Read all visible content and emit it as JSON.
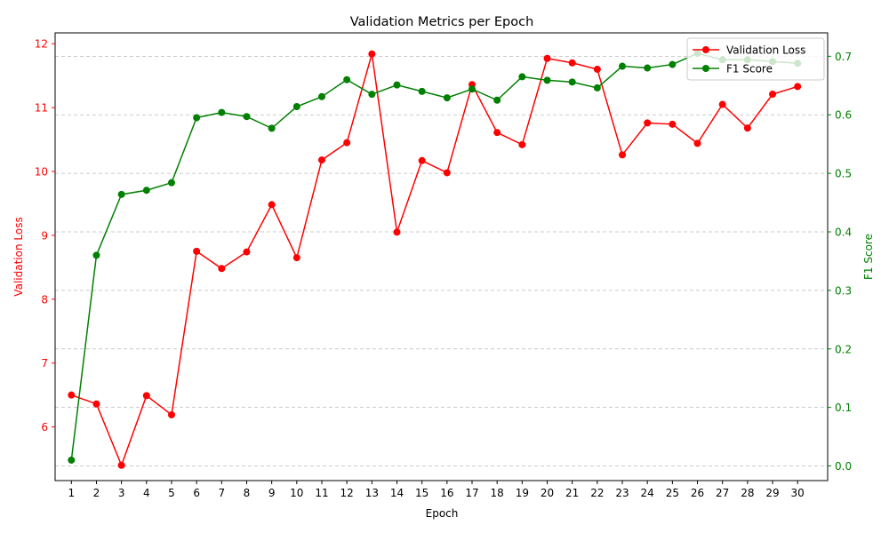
{
  "chart_data": {
    "type": "line",
    "title": "Validation Metrics per Epoch",
    "xlabel": "Epoch",
    "x": [
      1,
      2,
      3,
      4,
      5,
      6,
      7,
      8,
      9,
      10,
      11,
      12,
      13,
      14,
      15,
      16,
      17,
      18,
      19,
      20,
      21,
      22,
      23,
      24,
      25,
      26,
      27,
      28,
      29,
      30
    ],
    "xlim": [
      0.35,
      31.2
    ],
    "grid": true,
    "legend_position": "top-right",
    "series": [
      {
        "name": "Validation Loss",
        "axis": "left",
        "color": "#ff0000",
        "values": [
          6.5,
          6.36,
          5.4,
          6.49,
          6.19,
          8.75,
          8.48,
          8.74,
          9.48,
          8.65,
          10.18,
          10.45,
          11.84,
          9.05,
          10.17,
          9.98,
          11.36,
          10.61,
          10.42,
          11.77,
          11.7,
          11.6,
          10.26,
          10.76,
          10.74,
          10.44,
          11.05,
          10.68,
          11.21,
          11.33
        ]
      },
      {
        "name": "F1 Score",
        "axis": "right",
        "color": "#008000",
        "values": [
          0.01,
          0.36,
          0.464,
          0.471,
          0.484,
          0.595,
          0.604,
          0.597,
          0.577,
          0.614,
          0.631,
          0.66,
          0.635,
          0.651,
          0.64,
          0.629,
          0.644,
          0.625,
          0.665,
          0.659,
          0.656,
          0.646,
          0.683,
          0.68,
          0.686,
          0.705,
          0.694,
          0.694,
          0.691,
          0.688
        ]
      }
    ],
    "left_axis": {
      "label": "Validation Loss",
      "color": "#ff0000",
      "ylim": [
        5.16,
        12.17
      ],
      "ticks": [
        6,
        7,
        8,
        9,
        10,
        11,
        12
      ]
    },
    "right_axis": {
      "label": "F1 Score",
      "color": "#008000",
      "ylim": [
        -0.025,
        0.74
      ],
      "ticks": [
        0.0,
        0.1,
        0.2,
        0.3,
        0.4,
        0.5,
        0.6,
        0.7
      ]
    }
  }
}
